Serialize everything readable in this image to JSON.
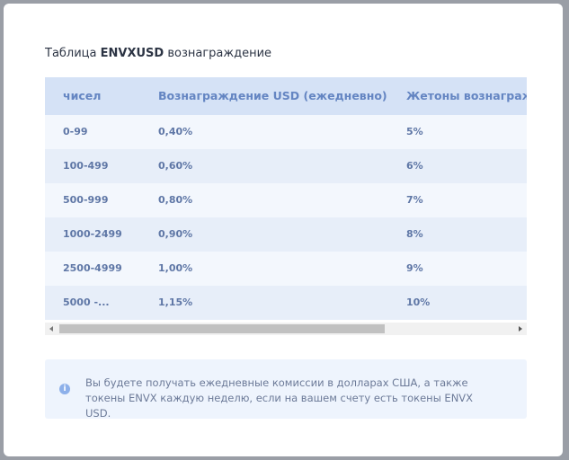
{
  "title": {
    "prefix": "Таблица",
    "bold": "ENVXUSD",
    "suffix": "вознаграждение"
  },
  "table": {
    "headers": [
      "чисел",
      "Вознаграждение USD (ежедневно)",
      "Жетоны вознаграждения"
    ],
    "rows": [
      [
        "0-99",
        "0,40%",
        "5%"
      ],
      [
        "100-499",
        "0,60%",
        "6%"
      ],
      [
        "500-999",
        "0,80%",
        "7%"
      ],
      [
        "1000-2499",
        "0,90%",
        "8%"
      ],
      [
        "2500-4999",
        "1,00%",
        "9%"
      ],
      [
        "5000 -...",
        "1,15%",
        "10%"
      ]
    ]
  },
  "info": {
    "text": "Вы будете получать ежедневные комиссии в долларах США, а также токены ENVX каждую неделю, если на вашем счету есть токены ENVX USD."
  }
}
